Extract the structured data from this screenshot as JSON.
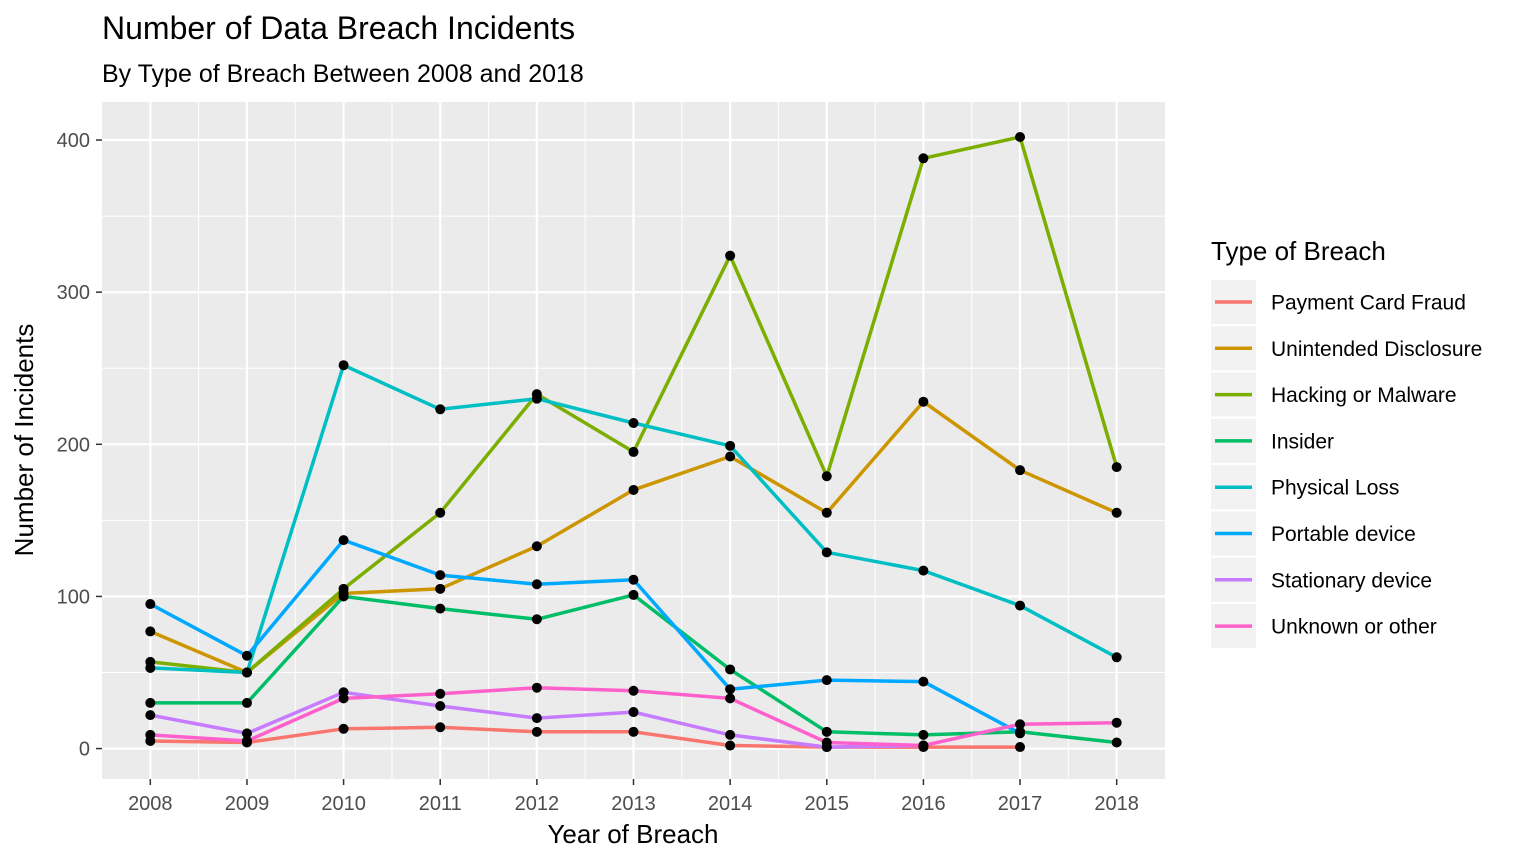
{
  "chart_data": {
    "type": "line",
    "title": "Number of Data Breach Incidents",
    "subtitle": "By Type of Breach Between 2008 and 2018",
    "xlabel": "Year of Breach",
    "ylabel": "Number of Incidents",
    "x": [
      2008,
      2009,
      2010,
      2011,
      2012,
      2013,
      2014,
      2015,
      2016,
      2017,
      2018
    ],
    "xlim": [
      2007.5,
      2018.5
    ],
    "ylim": [
      -20,
      425
    ],
    "y_ticks": [
      0,
      100,
      200,
      300,
      400
    ],
    "grid": true,
    "points_marked": true,
    "legend": {
      "title": "Type of Breach",
      "position": "right"
    },
    "series": [
      {
        "name": "Payment Card Fraud",
        "color": "#F8766D",
        "values": [
          5,
          4,
          13,
          14,
          11,
          11,
          2,
          1,
          1,
          1,
          null
        ]
      },
      {
        "name": "Unintended Disclosure",
        "color": "#CD9600",
        "values": [
          77,
          50,
          102,
          105,
          133,
          170,
          192,
          155,
          228,
          183,
          155
        ]
      },
      {
        "name": "Hacking or Malware",
        "color": "#7CAE00",
        "values": [
          57,
          50,
          105,
          155,
          233,
          195,
          324,
          179,
          388,
          402,
          185
        ]
      },
      {
        "name": "Insider",
        "color": "#00BE67",
        "values": [
          30,
          30,
          100,
          92,
          85,
          101,
          52,
          11,
          9,
          11,
          4
        ]
      },
      {
        "name": "Physical Loss",
        "color": "#00BFC4",
        "values": [
          53,
          50,
          252,
          223,
          230,
          214,
          199,
          129,
          117,
          94,
          60
        ]
      },
      {
        "name": "Portable device",
        "color": "#00A9FF",
        "values": [
          95,
          61,
          137,
          114,
          108,
          111,
          39,
          45,
          44,
          10,
          null
        ]
      },
      {
        "name": "Stationary device",
        "color": "#C77CFF",
        "values": [
          22,
          10,
          37,
          28,
          20,
          24,
          9,
          1,
          2,
          null,
          null
        ]
      },
      {
        "name": "Unknown or other",
        "color": "#FF61CC",
        "values": [
          9,
          5,
          33,
          36,
          40,
          38,
          33,
          4,
          2,
          16,
          17
        ]
      }
    ]
  }
}
